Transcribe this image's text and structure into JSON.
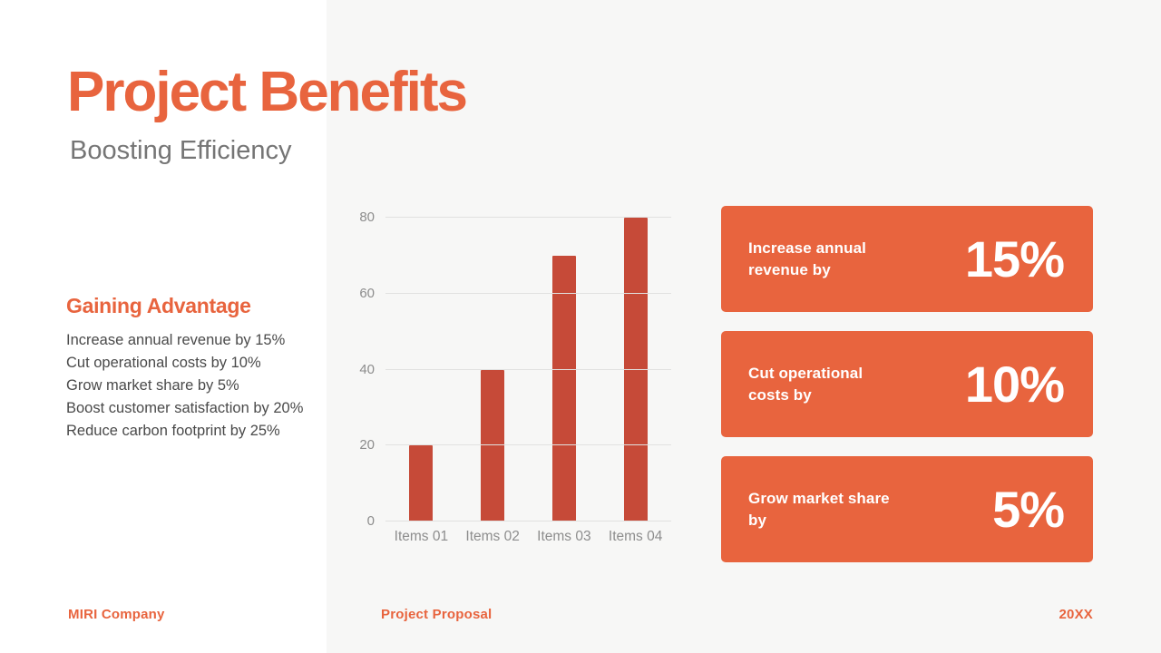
{
  "header": {
    "title": "Project Benefits",
    "subtitle": "Boosting Efficiency"
  },
  "advantage": {
    "heading": "Gaining Advantage",
    "items": [
      "Increase annual revenue by 15%",
      "Cut operational costs by 10%",
      "Grow market share by 5%",
      "Boost customer satisfaction by 20%",
      "Reduce carbon footprint by 25%"
    ]
  },
  "chart_data": {
    "type": "bar",
    "categories": [
      "Items 01",
      "Items 02",
      "Items 03",
      "Items 04"
    ],
    "values": [
      20,
      40,
      70,
      80
    ],
    "title": "",
    "xlabel": "",
    "ylabel": "",
    "ylim": [
      0,
      80
    ],
    "yticks": [
      0,
      20,
      40,
      60,
      80
    ],
    "grid": true,
    "legend": false,
    "bar_color": "#c64a38"
  },
  "cards": [
    {
      "label": "Increase annual revenue by",
      "value": "15%"
    },
    {
      "label": "Cut operational costs by",
      "value": "10%"
    },
    {
      "label": "Grow market share by",
      "value": "5%"
    }
  ],
  "footer": {
    "company": "MIRI Company",
    "center": "Project Proposal",
    "year": "20XX"
  },
  "colors": {
    "accent": "#e8643e",
    "bar": "#c64a38",
    "card_bg": "#e8643e",
    "body_text": "#4a4a4a",
    "muted_text": "#757575"
  }
}
